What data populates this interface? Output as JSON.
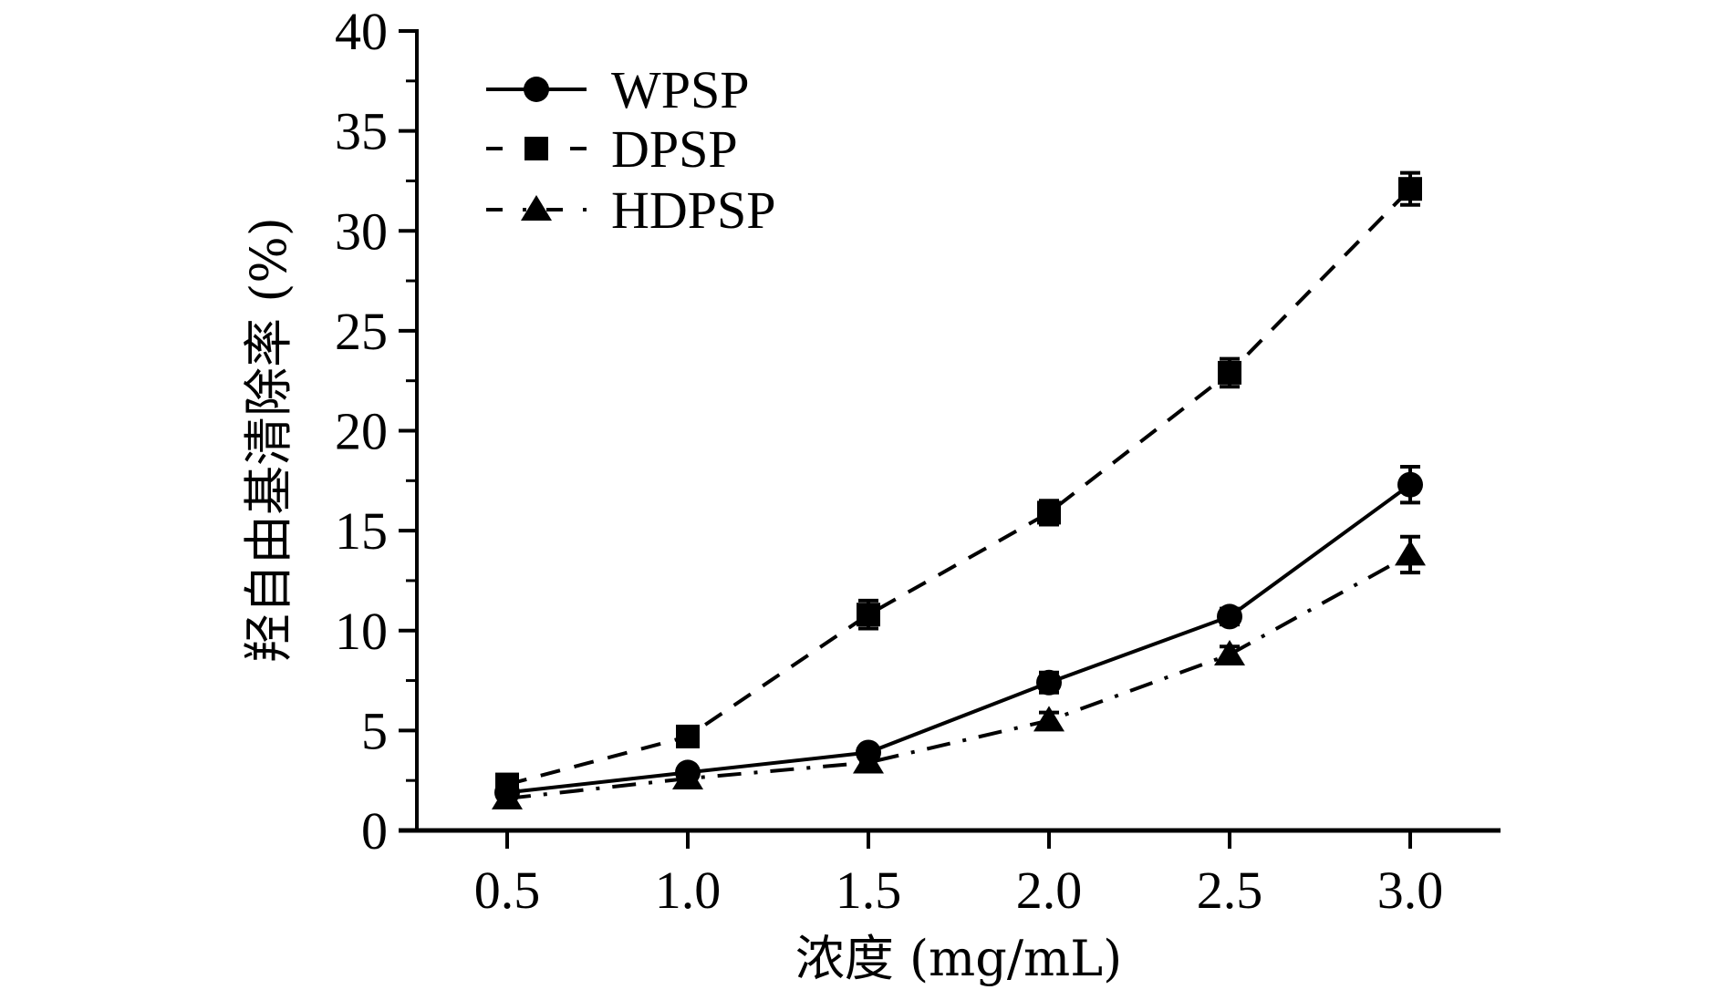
{
  "chart_data": {
    "type": "line",
    "title": "",
    "xlabel": "浓度 (mg/mL)",
    "ylabel": "羟自由基清除率 (%)",
    "x": [
      0.5,
      1.0,
      1.5,
      2.0,
      2.5,
      3.0
    ],
    "x_tick_labels": [
      "0.5",
      "1.0",
      "1.5",
      "2.0",
      "2.5",
      "3.0"
    ],
    "xlim": [
      0.25,
      3.25
    ],
    "ylim": [
      0,
      40
    ],
    "y_ticks": [
      0,
      5,
      10,
      15,
      20,
      25,
      30,
      35,
      40
    ],
    "y_tick_labels": [
      "0",
      "5",
      "10",
      "15",
      "20",
      "25",
      "30",
      "35",
      "40"
    ],
    "grid": false,
    "legend_position": "top-left",
    "series": [
      {
        "name": "WPSP",
        "line_style": "solid",
        "marker": "circle",
        "values": [
          1.9,
          2.9,
          3.9,
          7.4,
          10.7,
          17.3
        ],
        "errors": [
          0.2,
          0.3,
          0.3,
          0.5,
          0.4,
          0.9
        ]
      },
      {
        "name": "DPSP",
        "line_style": "dashed",
        "marker": "square",
        "values": [
          2.3,
          4.7,
          10.8,
          15.9,
          22.9,
          32.1
        ],
        "errors": [
          0.2,
          0.3,
          0.7,
          0.6,
          0.7,
          0.8
        ]
      },
      {
        "name": "HDPSP",
        "line_style": "dash-dot",
        "marker": "triangle",
        "values": [
          1.6,
          2.6,
          3.4,
          5.5,
          8.8,
          13.8
        ],
        "errors": [
          0.2,
          0.2,
          0.2,
          0.4,
          0.4,
          0.9
        ]
      }
    ],
    "colors": {
      "line": "#000000",
      "background": "#ffffff"
    }
  }
}
